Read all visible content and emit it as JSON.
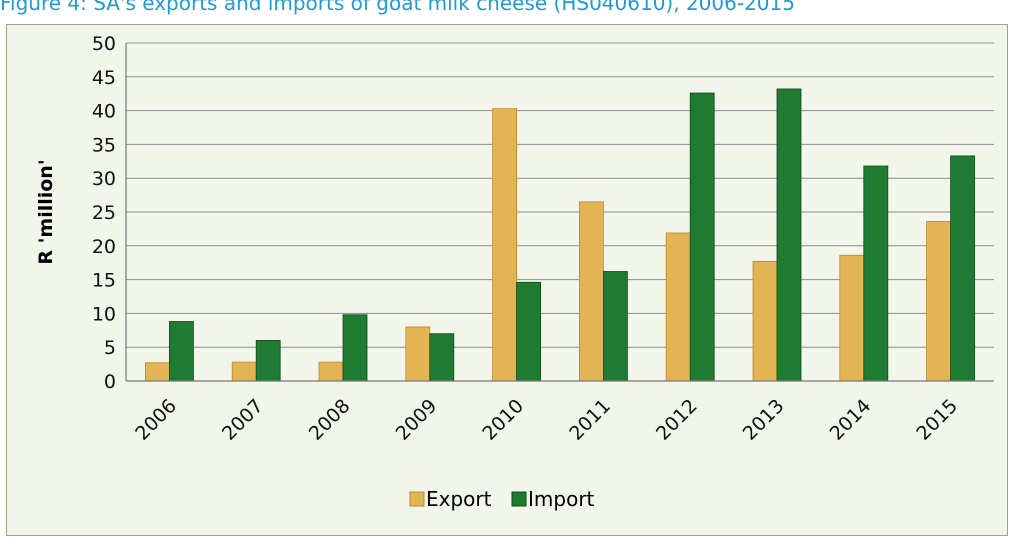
{
  "figure_caption": "Figure 4: SA's exports and imports of goat milk cheese (HS040610), 2006-2015",
  "colors": {
    "export_fill": "#e3b454",
    "export_edge": "#b88a2a",
    "import_fill": "#1f7a32",
    "import_edge": "#0e4a1a",
    "panel_bg": "#f2f6ea"
  },
  "chart_data": {
    "type": "bar",
    "title": "",
    "xlabel": "",
    "ylabel": "R 'million'",
    "categories": [
      "2006",
      "2007",
      "2008",
      "2009",
      "2010",
      "2011",
      "2012",
      "2013",
      "2014",
      "2015"
    ],
    "series": [
      {
        "name": "Export",
        "values": [
          2.7,
          2.8,
          2.8,
          8.0,
          40.3,
          26.5,
          21.9,
          17.7,
          18.6,
          23.6
        ]
      },
      {
        "name": "Import",
        "values": [
          8.8,
          6.0,
          9.8,
          7.0,
          14.6,
          16.2,
          42.6,
          43.2,
          31.8,
          33.3
        ]
      }
    ],
    "ylim": [
      0,
      50
    ],
    "yticks": [
      "0",
      "5",
      "10",
      "15",
      "20",
      "25",
      "30",
      "35",
      "40",
      "45",
      "50"
    ],
    "grid": true,
    "legend_position": "bottom"
  }
}
